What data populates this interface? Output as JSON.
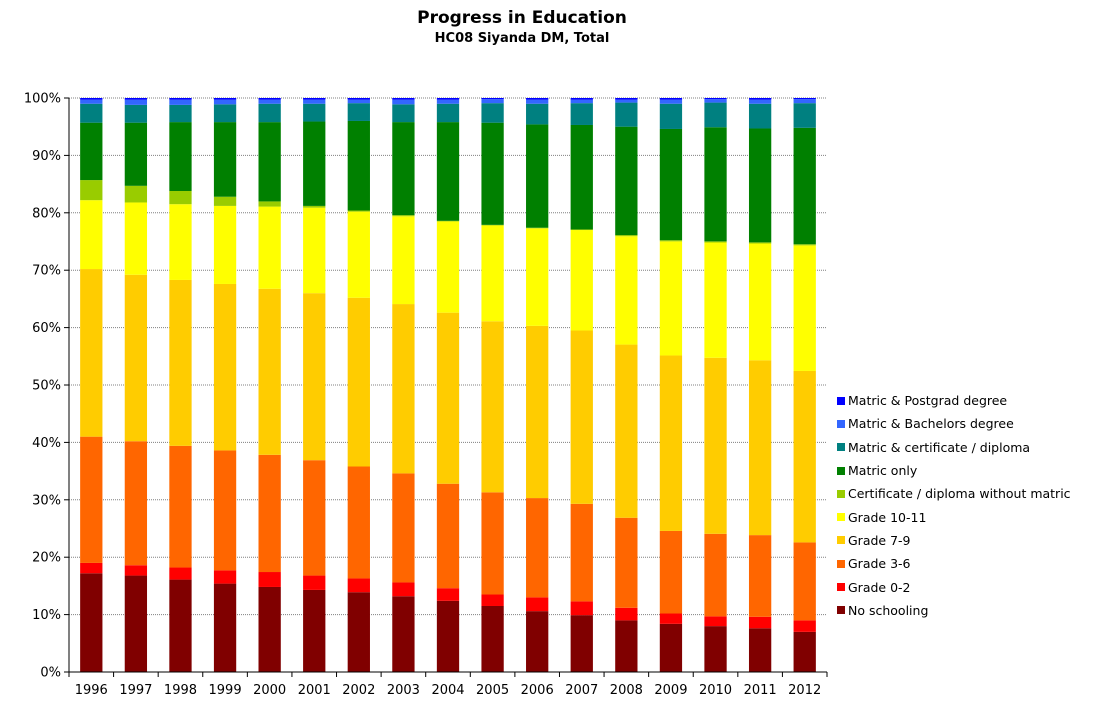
{
  "chart_data": {
    "type": "bar",
    "stacked": true,
    "title": "Progress in Education",
    "subtitle": "HC08 Siyanda DM, Total",
    "xlabel": "",
    "ylabel": "",
    "ylim": [
      0,
      100
    ],
    "y_ticks": [
      "0%",
      "10%",
      "20%",
      "30%",
      "40%",
      "50%",
      "60%",
      "70%",
      "80%",
      "90%",
      "100%"
    ],
    "grid": true,
    "legend_position": "right",
    "categories": [
      "1996",
      "1997",
      "1998",
      "1999",
      "2000",
      "2001",
      "2002",
      "2003",
      "2004",
      "2005",
      "2006",
      "2007",
      "2008",
      "2009",
      "2010",
      "2011",
      "2012"
    ],
    "series": [
      {
        "name": "No schooling",
        "color": "#800000",
        "values": [
          17.2,
          16.8,
          16.1,
          15.4,
          14.8,
          14.3,
          13.9,
          13.2,
          12.4,
          11.5,
          10.6,
          9.9,
          9.0,
          8.4,
          8.0,
          7.6,
          7.0
        ]
      },
      {
        "name": "Grade 0-2",
        "color": "#ff0000",
        "values": [
          1.8,
          1.8,
          2.1,
          2.3,
          2.6,
          2.5,
          2.4,
          2.4,
          2.2,
          2.0,
          2.4,
          2.4,
          2.2,
          1.8,
          1.7,
          2.0,
          2.0
        ]
      },
      {
        "name": "Grade 3-6",
        "color": "#ff6600",
        "values": [
          22.0,
          21.6,
          21.2,
          20.9,
          20.4,
          20.1,
          19.5,
          19.0,
          18.2,
          17.8,
          17.3,
          17.0,
          15.7,
          14.4,
          14.4,
          14.2,
          13.6
        ]
      },
      {
        "name": "Grade 7-9",
        "color": "#ffcc00",
        "values": [
          29.2,
          29.0,
          28.9,
          29.0,
          28.9,
          29.1,
          29.4,
          29.5,
          29.8,
          29.8,
          30.0,
          30.2,
          30.2,
          30.6,
          30.7,
          30.4,
          29.9
        ]
      },
      {
        "name": "Grade 10-11",
        "color": "#ffff00",
        "values": [
          12.0,
          12.6,
          13.2,
          13.6,
          14.3,
          14.9,
          15.0,
          15.3,
          15.9,
          16.7,
          17.0,
          17.5,
          18.9,
          19.9,
          20.1,
          20.3,
          21.9
        ]
      },
      {
        "name": "Certificate / diploma without matric",
        "color": "#99cc00",
        "values": [
          3.5,
          2.9,
          2.3,
          1.6,
          0.9,
          0.3,
          0.2,
          0.2,
          0.1,
          0.1,
          0.1,
          0.1,
          0.2,
          0.2,
          0.2,
          0.2,
          0.2
        ]
      },
      {
        "name": "Matric only",
        "color": "#008000",
        "values": [
          10.0,
          11.0,
          12.0,
          13.0,
          13.8,
          14.7,
          15.6,
          16.2,
          17.2,
          17.8,
          18.0,
          18.2,
          18.9,
          19.4,
          19.9,
          19.8,
          20.3
        ]
      },
      {
        "name": "Matric & certificate / diploma",
        "color": "#008080",
        "values": [
          3.3,
          3.1,
          3.0,
          3.1,
          3.2,
          3.1,
          3.1,
          3.1,
          3.2,
          3.4,
          3.6,
          3.8,
          4.2,
          4.4,
          4.3,
          4.3,
          4.3
        ]
      },
      {
        "name": "Matric & Bachelors degree",
        "color": "#3366ff",
        "values": [
          0.7,
          0.9,
          0.9,
          0.8,
          0.7,
          0.7,
          0.6,
          0.8,
          0.7,
          0.7,
          0.7,
          0.6,
          0.5,
          0.7,
          0.6,
          0.7,
          0.7
        ]
      },
      {
        "name": "Matric & Postgrad degree",
        "color": "#0000ff",
        "values": [
          0.3,
          0.3,
          0.3,
          0.3,
          0.3,
          0.3,
          0.3,
          0.3,
          0.3,
          0.2,
          0.3,
          0.3,
          0.3,
          0.3,
          0.2,
          0.3,
          0.2
        ]
      }
    ]
  }
}
